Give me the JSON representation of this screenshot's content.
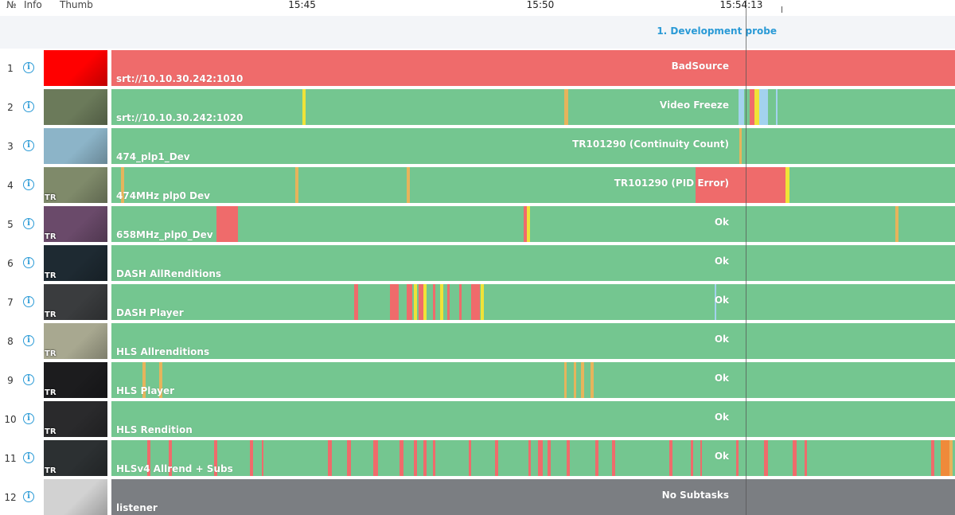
{
  "header": {
    "num_label": "№",
    "info_label": "Info",
    "thumb_label": "Thumb",
    "ticks": [
      {
        "label": "15:45",
        "minute": 45.0
      },
      {
        "label": "15:50",
        "minute": 50.0
      },
      {
        "label": "15:54:13",
        "minute": 54.2167
      }
    ]
  },
  "group": {
    "label": "1. Development probe"
  },
  "colors": {
    "ok": "#74c690",
    "error": "#ef6b6b",
    "warning": "#e6b45c",
    "yellow": "#efe338",
    "blue": "#a3d2ee",
    "orange": "#ef8a3a",
    "disabled": "#7b7e82",
    "accent": "#2a9ad6"
  },
  "timeline": {
    "start_minute": 41.0,
    "end_minute": 58.7
  },
  "rows": [
    {
      "num": "1",
      "stream": "srt://10.10.30.242:1010",
      "status": "BadSource",
      "base": "error",
      "thumb": "#ff0000",
      "tr": "",
      "segs": []
    },
    {
      "num": "2",
      "stream": "srt://10.10.30.242:1020",
      "status": "Video Freeze",
      "base": "ok",
      "thumb": "#6b7a5a",
      "tr": "",
      "segs": [
        {
          "s": 45.0,
          "e": 45.07,
          "c": "yellow"
        },
        {
          "s": 50.5,
          "e": 50.58,
          "c": "warning"
        },
        {
          "s": 54.15,
          "e": 54.27,
          "c": "blue"
        },
        {
          "s": 54.4,
          "e": 54.5,
          "c": "error"
        },
        {
          "s": 54.5,
          "e": 54.6,
          "c": "yellow"
        },
        {
          "s": 54.6,
          "e": 54.78,
          "c": "blue"
        },
        {
          "s": 54.95,
          "e": 54.97,
          "c": "blue"
        }
      ]
    },
    {
      "num": "3",
      "stream": "474_plp1_Dev",
      "status": "TR101290 (Continuity Count)",
      "base": "ok",
      "thumb": "#8cb4c8",
      "tr": "",
      "segs": [
        {
          "s": 54.17,
          "e": 54.22,
          "c": "warning"
        }
      ]
    },
    {
      "num": "4",
      "stream": "474MHz plp0 Dev",
      "status": "TR101290 (PID Error)",
      "base": "ok",
      "thumb": "#7f8a6a",
      "tr": "TR",
      "segs": [
        {
          "s": 41.2,
          "e": 41.27,
          "c": "warning"
        },
        {
          "s": 44.85,
          "e": 44.92,
          "c": "warning"
        },
        {
          "s": 47.2,
          "e": 47.27,
          "c": "warning"
        },
        {
          "s": 53.25,
          "e": 55.15,
          "c": "error"
        },
        {
          "s": 55.15,
          "e": 55.22,
          "c": "yellow"
        }
      ]
    },
    {
      "num": "5",
      "stream": "658MHz_plp0_Dev",
      "status": "Ok",
      "base": "ok",
      "thumb": "#6a4a6a",
      "tr": "TR",
      "segs": [
        {
          "s": 43.2,
          "e": 43.65,
          "c": "error"
        },
        {
          "s": 49.65,
          "e": 49.72,
          "c": "error"
        },
        {
          "s": 49.72,
          "e": 49.78,
          "c": "yellow"
        },
        {
          "s": 57.45,
          "e": 57.52,
          "c": "warning"
        }
      ]
    },
    {
      "num": "6",
      "stream": "DASH AllRenditions",
      "status": "Ok",
      "base": "ok",
      "thumb": "#1e2a32",
      "tr": "TR",
      "segs": []
    },
    {
      "num": "7",
      "stream": "DASH Player",
      "status": "Ok",
      "base": "ok",
      "thumb": "#3a3c3e",
      "tr": "TR",
      "segs": [
        {
          "s": 46.1,
          "e": 46.17,
          "c": "error"
        },
        {
          "s": 46.85,
          "e": 47.02,
          "c": "error"
        },
        {
          "s": 47.2,
          "e": 47.32,
          "c": "error"
        },
        {
          "s": 47.35,
          "e": 47.42,
          "c": "yellow"
        },
        {
          "s": 47.45,
          "e": 47.55,
          "c": "error"
        },
        {
          "s": 47.55,
          "e": 47.62,
          "c": "yellow"
        },
        {
          "s": 47.75,
          "e": 47.8,
          "c": "error"
        },
        {
          "s": 47.9,
          "e": 47.96,
          "c": "yellow"
        },
        {
          "s": 48.05,
          "e": 48.1,
          "c": "error"
        },
        {
          "s": 48.3,
          "e": 48.35,
          "c": "error"
        },
        {
          "s": 48.55,
          "e": 48.73,
          "c": "error"
        },
        {
          "s": 48.75,
          "e": 48.82,
          "c": "yellow"
        },
        {
          "s": 53.65,
          "e": 53.69,
          "c": "blue"
        }
      ]
    },
    {
      "num": "8",
      "stream": "HLS Allrenditions",
      "status": "Ok",
      "base": "ok",
      "thumb": "#a8a890",
      "tr": "TR",
      "segs": []
    },
    {
      "num": "9",
      "stream": "HLS Player",
      "status": "Ok",
      "base": "ok",
      "thumb": "#1c1c1e",
      "tr": "TR",
      "segs": [
        {
          "s": 41.65,
          "e": 41.72,
          "c": "warning"
        },
        {
          "s": 42.0,
          "e": 42.07,
          "c": "warning"
        },
        {
          "s": 50.5,
          "e": 50.55,
          "c": "warning"
        },
        {
          "s": 50.7,
          "e": 50.75,
          "c": "warning"
        },
        {
          "s": 50.85,
          "e": 50.92,
          "c": "warning"
        },
        {
          "s": 51.05,
          "e": 51.12,
          "c": "warning"
        }
      ]
    },
    {
      "num": "10",
      "stream": "HLS Rendition",
      "status": "Ok",
      "base": "ok",
      "thumb": "#2a2a2c",
      "tr": "TR",
      "segs": []
    },
    {
      "num": "11",
      "stream": "HLSv4 Allrend + Subs",
      "status": "Ok",
      "base": "ok",
      "thumb": "#2c3032",
      "tr": "TR",
      "segs": [
        {
          "s": 41.75,
          "e": 41.82,
          "c": "error"
        },
        {
          "s": 42.2,
          "e": 42.27,
          "c": "error"
        },
        {
          "s": 43.15,
          "e": 43.22,
          "c": "error"
        },
        {
          "s": 43.9,
          "e": 43.97,
          "c": "error"
        },
        {
          "s": 44.15,
          "e": 44.18,
          "c": "error"
        },
        {
          "s": 45.55,
          "e": 45.62,
          "c": "error"
        },
        {
          "s": 45.95,
          "e": 46.02,
          "c": "error"
        },
        {
          "s": 46.5,
          "e": 46.6,
          "c": "error"
        },
        {
          "s": 47.05,
          "e": 47.12,
          "c": "error"
        },
        {
          "s": 47.35,
          "e": 47.42,
          "c": "error"
        },
        {
          "s": 47.55,
          "e": 47.62,
          "c": "error"
        },
        {
          "s": 47.75,
          "e": 47.8,
          "c": "error"
        },
        {
          "s": 48.5,
          "e": 48.55,
          "c": "error"
        },
        {
          "s": 49.05,
          "e": 49.12,
          "c": "error"
        },
        {
          "s": 49.75,
          "e": 49.8,
          "c": "error"
        },
        {
          "s": 49.95,
          "e": 50.05,
          "c": "error"
        },
        {
          "s": 50.15,
          "e": 50.22,
          "c": "error"
        },
        {
          "s": 50.55,
          "e": 50.62,
          "c": "error"
        },
        {
          "s": 51.15,
          "e": 51.22,
          "c": "error"
        },
        {
          "s": 51.5,
          "e": 51.57,
          "c": "error"
        },
        {
          "s": 52.7,
          "e": 52.77,
          "c": "error"
        },
        {
          "s": 53.15,
          "e": 53.2,
          "c": "error"
        },
        {
          "s": 53.35,
          "e": 53.38,
          "c": "error"
        },
        {
          "s": 54.1,
          "e": 54.15,
          "c": "error"
        },
        {
          "s": 54.7,
          "e": 54.77,
          "c": "error"
        },
        {
          "s": 55.3,
          "e": 55.37,
          "c": "error"
        },
        {
          "s": 55.55,
          "e": 55.6,
          "c": "error"
        },
        {
          "s": 58.2,
          "e": 58.27,
          "c": "error"
        },
        {
          "s": 58.4,
          "e": 58.58,
          "c": "orange"
        },
        {
          "s": 58.58,
          "e": 58.65,
          "c": "warning"
        },
        {
          "s": 58.7,
          "e": 58.75,
          "c": "warning"
        }
      ]
    },
    {
      "num": "12",
      "stream": "listener",
      "status": "No Subtasks",
      "base": "disabled",
      "thumb": "#d2d2d2",
      "tr": "",
      "segs": []
    }
  ]
}
